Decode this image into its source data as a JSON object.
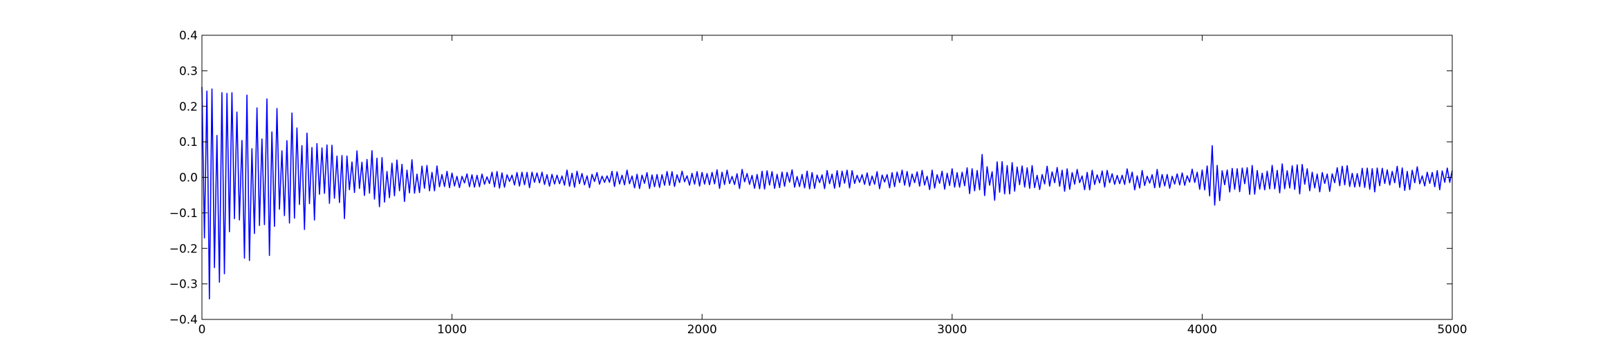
{
  "chart_data": {
    "type": "line",
    "title": "",
    "xlabel": "",
    "ylabel": "",
    "xlim": [
      0,
      5000
    ],
    "ylim": [
      -0.4,
      0.4
    ],
    "x_ticks": [
      0,
      1000,
      2000,
      3000,
      4000,
      5000
    ],
    "x_tick_labels": [
      "0",
      "1000",
      "2000",
      "3000",
      "4000",
      "5000"
    ],
    "y_ticks": [
      0.4,
      0.3,
      0.2,
      0.1,
      0.0,
      -0.1,
      -0.2,
      -0.3,
      -0.4
    ],
    "y_tick_labels": [
      "0.4",
      "0.3",
      "0.2",
      "0.1",
      "0.0",
      "−0.1",
      "−0.2",
      "−0.3",
      "−0.4"
    ],
    "grid": false,
    "legend": "none",
    "series": [
      {
        "color": "#0000ff",
        "x_start": 0,
        "x_step": 10,
        "count": 501,
        "envelope": [
          {
            "x": 0,
            "amplitude": 0.35
          },
          {
            "x": 50,
            "amplitude": 0.33
          },
          {
            "x": 150,
            "amplitude": 0.27
          },
          {
            "x": 300,
            "amplitude": 0.23
          },
          {
            "x": 450,
            "amplitude": 0.13
          },
          {
            "x": 550,
            "amplitude": 0.12
          },
          {
            "x": 700,
            "amplitude": 0.09
          },
          {
            "x": 900,
            "amplitude": 0.045
          },
          {
            "x": 1000,
            "amplitude": 0.025
          },
          {
            "x": 3050,
            "amplitude": 0.03
          },
          {
            "x": 3100,
            "amplitude": 0.085
          },
          {
            "x": 3200,
            "amplitude": 0.05
          },
          {
            "x": 3400,
            "amplitude": 0.035
          },
          {
            "x": 4000,
            "amplitude": 0.03
          },
          {
            "x": 4020,
            "amplitude": 0.125
          },
          {
            "x": 4080,
            "amplitude": 0.05
          },
          {
            "x": 4500,
            "amplitude": 0.04
          },
          {
            "x": 5000,
            "amplitude": 0.035
          }
        ]
      }
    ]
  }
}
